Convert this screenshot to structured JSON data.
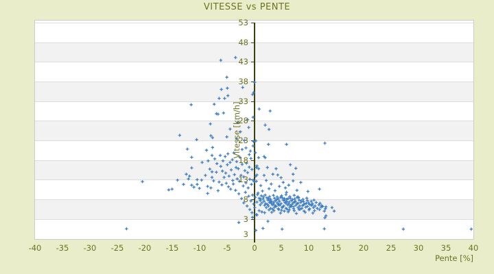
{
  "chart_data": {
    "type": "scatter",
    "title": "VITESSE vs PENTE",
    "xlabel": "Pente [%]",
    "ylabel": "Vitesse [km/h]",
    "xlim": [
      -40,
      40
    ],
    "ylim": [
      -2,
      53.5
    ],
    "x_ticks": [
      -40,
      -35,
      -30,
      -25,
      -20,
      -15,
      -10,
      -5,
      0,
      5,
      10,
      15,
      20,
      25,
      30,
      35,
      40
    ],
    "y_ticks": [
      53,
      48,
      43,
      38,
      33,
      28,
      23,
      18,
      13,
      8,
      3
    ],
    "y_axis_bottom_label": "3",
    "grid": "horizontal-stripes-every-5",
    "legend": "none",
    "marker": "plus",
    "colors": {
      "background": "#e9edca",
      "plot_background": "#ffffff",
      "stripe": "#f2f2f2",
      "gridline": "#dddddd",
      "plot_border": "#cccccc",
      "text": "#6c7423",
      "axis_line": "#3a400c",
      "point": "#3d7ec6"
    },
    "points": [
      [
        -6.1,
        43.4
      ],
      [
        -3.4,
        44.1
      ],
      [
        -5,
        39.1
      ],
      [
        0.1,
        37.8
      ],
      [
        -6,
        36
      ],
      [
        -4.9,
        36.3
      ],
      [
        -2.1,
        36.5
      ],
      [
        -0.1,
        35.2
      ],
      [
        -0.3,
        34.7
      ],
      [
        -4.8,
        34.4
      ],
      [
        -6.4,
        33.7
      ],
      [
        -5.4,
        33.7
      ],
      [
        -11.5,
        32.1
      ],
      [
        -7.3,
        32.2
      ],
      [
        0.9,
        31
      ],
      [
        2.9,
        30.5
      ],
      [
        -6.9,
        29.8
      ],
      [
        -5.6,
        30
      ],
      [
        -6.6,
        29.7
      ],
      [
        -0.2,
        28.9
      ],
      [
        -1.2,
        28.3
      ],
      [
        -3,
        27.6
      ],
      [
        -8,
        27.2
      ],
      [
        2,
        26.9
      ],
      [
        2.7,
        25.8
      ],
      [
        -1,
        26.3
      ],
      [
        -4.4,
        25.9
      ],
      [
        -2.5,
        25.2
      ],
      [
        -13.6,
        24.3
      ],
      [
        -7.9,
        24.2
      ],
      [
        -7.6,
        23.7
      ],
      [
        -10.5,
        23.2
      ],
      [
        -5,
        23.9
      ],
      [
        -3.2,
        23.4
      ],
      [
        0.3,
        22.9
      ],
      [
        -0.1,
        22.7
      ],
      [
        2.6,
        22
      ],
      [
        5.9,
        22
      ],
      [
        12.9,
        22.3
      ],
      [
        -1.8,
        23
      ],
      [
        -0.7,
        20.3
      ],
      [
        -1.5,
        21.1
      ],
      [
        -2.2,
        20.7
      ],
      [
        0.2,
        19.9
      ],
      [
        -0.9,
        19.4
      ],
      [
        -0.2,
        21.6
      ],
      [
        -12.2,
        20.8
      ],
      [
        -8.7,
        20.5
      ],
      [
        -7.6,
        21.2
      ],
      [
        -11.4,
        18.7
      ],
      [
        -7.7,
        19.2
      ],
      [
        -9.5,
        17.4
      ],
      [
        -8.4,
        17.8
      ],
      [
        -11.4,
        16
      ],
      [
        -8.1,
        15.7
      ],
      [
        -7.7,
        15
      ],
      [
        -12.4,
        14.4
      ],
      [
        -11.8,
        13.9
      ],
      [
        -8.9,
        14.1
      ],
      [
        -7.7,
        13.6
      ],
      [
        -20.4,
        12.5
      ],
      [
        -14,
        12.9
      ],
      [
        -12,
        13.2
      ],
      [
        -10.4,
        13
      ],
      [
        -9.6,
        12.9
      ],
      [
        -12.9,
        11.8
      ],
      [
        -11.4,
        11.6
      ],
      [
        -10.4,
        11.8
      ],
      [
        -15,
        10.6
      ],
      [
        -15.6,
        10.4
      ],
      [
        -11,
        11.1
      ],
      [
        -10,
        10.8
      ],
      [
        -8.5,
        11.3
      ],
      [
        -8.5,
        9.5
      ],
      [
        -7.2,
        18.3
      ],
      [
        -6.8,
        17.1
      ],
      [
        -6.1,
        16.4
      ],
      [
        -5.8,
        15.2
      ],
      [
        -5.2,
        14.7
      ],
      [
        -4.9,
        16.8
      ],
      [
        -4.6,
        13.9
      ],
      [
        -4.2,
        15.5
      ],
      [
        -3.9,
        12.8
      ],
      [
        -3.6,
        14.3
      ],
      [
        -3.3,
        16.1
      ],
      [
        -3.1,
        13.2
      ],
      [
        -6.4,
        12.4
      ],
      [
        -5.9,
        11.7
      ],
      [
        -5.5,
        13.6
      ],
      [
        -5.1,
        12.1
      ],
      [
        -4.7,
        11.2
      ],
      [
        -4.3,
        10.6
      ],
      [
        -3.8,
        11.9
      ],
      [
        -3.4,
        10.3
      ],
      [
        -6.9,
        14.9
      ],
      [
        -6.2,
        19.2
      ],
      [
        -5.7,
        17.8
      ],
      [
        -5.3,
        18.9
      ],
      [
        -4.8,
        19.6
      ],
      [
        -4.4,
        17.4
      ],
      [
        -4,
        18.1
      ],
      [
        -3.7,
        19.8
      ],
      [
        -3.2,
        17.6
      ],
      [
        -2.9,
        15.8
      ],
      [
        -2.7,
        12.6
      ],
      [
        -2.6,
        18.7
      ],
      [
        -2.4,
        14.1
      ],
      [
        -2.2,
        16.9
      ],
      [
        -2,
        11.4
      ],
      [
        -1.9,
        13.7
      ],
      [
        -1.7,
        15.3
      ],
      [
        -1.5,
        12.2
      ],
      [
        -1.4,
        17.2
      ],
      [
        -1.2,
        14.8
      ],
      [
        -1.1,
        10.9
      ],
      [
        -0.9,
        16.2
      ],
      [
        -0.8,
        13.1
      ],
      [
        -0.6,
        18.4
      ],
      [
        -0.5,
        11.8
      ],
      [
        -0.4,
        15.6
      ],
      [
        -0.2,
        12.9
      ],
      [
        -6.6,
        10.2
      ],
      [
        -7.4,
        12.7
      ],
      [
        -7.9,
        10.9
      ],
      [
        -2.8,
        9.4
      ],
      [
        -2.3,
        8.2
      ],
      [
        -1.9,
        7.1
      ],
      [
        -1.6,
        9.8
      ],
      [
        -1.3,
        6.3
      ],
      [
        -1,
        8.8
      ],
      [
        -0.8,
        5.4
      ],
      [
        -0.6,
        7.6
      ],
      [
        -0.4,
        4.6
      ],
      [
        -0.3,
        9.1
      ],
      [
        -0.1,
        6.8
      ],
      [
        0.1,
        5.9
      ],
      [
        0.2,
        8.5
      ],
      [
        0.4,
        4.1
      ],
      [
        0.5,
        7.3
      ],
      [
        0.7,
        9.6
      ],
      [
        0.9,
        5.1
      ],
      [
        1.1,
        6.6
      ],
      [
        1.2,
        8.1
      ],
      [
        1.4,
        4.8
      ],
      [
        0.4,
        16.1
      ],
      [
        0.5,
        16.5
      ],
      [
        0.8,
        15.8
      ],
      [
        2.4,
        16.1
      ],
      [
        4,
        15.8
      ],
      [
        6.6,
        16.8
      ],
      [
        7.6,
        15.9
      ],
      [
        3.4,
        14.4
      ],
      [
        4.3,
        14.2
      ],
      [
        0.5,
        14.2
      ],
      [
        0.3,
        13.9
      ],
      [
        1.8,
        14.1
      ],
      [
        7.1,
        14.4
      ],
      [
        7.1,
        12.7
      ],
      [
        5.3,
        12.3
      ],
      [
        8.5,
        12.3
      ],
      [
        0.4,
        12.6
      ],
      [
        0,
        12.5
      ],
      [
        0.8,
        18.6
      ],
      [
        1.8,
        18.9
      ],
      [
        2,
        18.6
      ],
      [
        1.2,
        11.5
      ],
      [
        2.2,
        12.8
      ],
      [
        3.1,
        11.9
      ],
      [
        2.7,
        10.7
      ],
      [
        4.6,
        11.3
      ],
      [
        3.8,
        10.2
      ],
      [
        5.7,
        10.9
      ],
      [
        1.5,
        10.1
      ],
      [
        6.3,
        11.6
      ],
      [
        4.9,
        13.5
      ],
      [
        5.9,
        9.8
      ],
      [
        7.8,
        10.3
      ],
      [
        9.8,
        10
      ],
      [
        11.9,
        10.6
      ],
      [
        0.6,
        9.2
      ],
      [
        1.3,
        8.9
      ],
      [
        2,
        9.1
      ],
      [
        2.8,
        8.7
      ],
      [
        3.5,
        9
      ],
      [
        4.2,
        8.6
      ],
      [
        5,
        8.9
      ],
      [
        5.8,
        9.2
      ],
      [
        6.5,
        8.7
      ],
      [
        7.3,
        9
      ],
      [
        8,
        8.6
      ],
      [
        1.7,
        8.6
      ],
      [
        0.9,
        8.3
      ],
      [
        1.6,
        8.1
      ],
      [
        2.3,
        8.4
      ],
      [
        3,
        8
      ],
      [
        3.7,
        8.3
      ],
      [
        4.4,
        8.1
      ],
      [
        5.1,
        8.4
      ],
      [
        5.9,
        8
      ],
      [
        6.6,
        8.3
      ],
      [
        7.4,
        8.1
      ],
      [
        8.1,
        8.4
      ],
      [
        8.9,
        8
      ],
      [
        9.6,
        8.3
      ],
      [
        2.6,
        8.2
      ],
      [
        4.8,
        8.5
      ],
      [
        6.2,
        8.2
      ],
      [
        7.8,
        8.5
      ],
      [
        5.5,
        8.2
      ],
      [
        1.1,
        7.7
      ],
      [
        1.8,
        7.5
      ],
      [
        2.5,
        7.8
      ],
      [
        3.2,
        7.4
      ],
      [
        3.9,
        7.7
      ],
      [
        4.6,
        7.5
      ],
      [
        5.3,
        7.8
      ],
      [
        6,
        7.4
      ],
      [
        6.8,
        7.7
      ],
      [
        7.5,
        7.5
      ],
      [
        8.2,
        7.8
      ],
      [
        9,
        7.4
      ],
      [
        9.7,
        7.7
      ],
      [
        10.4,
        7.5
      ],
      [
        2.9,
        7.6
      ],
      [
        4.1,
        7.9
      ],
      [
        5.6,
        7.6
      ],
      [
        7,
        7.9
      ],
      [
        8.6,
        7.6
      ],
      [
        3.6,
        7.3
      ],
      [
        6.4,
        7.3
      ],
      [
        10.9,
        7.8
      ],
      [
        1.4,
        7.1
      ],
      [
        2.1,
        6.9
      ],
      [
        2.8,
        7.2
      ],
      [
        3.5,
        6.8
      ],
      [
        4.2,
        7.1
      ],
      [
        4.9,
        6.9
      ],
      [
        5.6,
        7.2
      ],
      [
        6.3,
        6.8
      ],
      [
        7.1,
        7.1
      ],
      [
        7.8,
        6.9
      ],
      [
        8.5,
        7.2
      ],
      [
        9.2,
        6.8
      ],
      [
        9.9,
        7.1
      ],
      [
        10.6,
        6.9
      ],
      [
        11.3,
        7.2
      ],
      [
        3.1,
        7
      ],
      [
        5.8,
        7
      ],
      [
        8,
        7
      ],
      [
        4.5,
        6.7
      ],
      [
        6.9,
        6.7
      ],
      [
        9.5,
        7
      ],
      [
        2.4,
        6.7
      ],
      [
        12,
        7
      ],
      [
        10.1,
        6.7
      ],
      [
        7.4,
        7.3
      ],
      [
        1.9,
        6.5
      ],
      [
        2.6,
        6.3
      ],
      [
        3.3,
        6.6
      ],
      [
        4,
        6.2
      ],
      [
        4.7,
        6.5
      ],
      [
        5.4,
        6.3
      ],
      [
        6.1,
        6.6
      ],
      [
        6.8,
        6.2
      ],
      [
        7.6,
        6.5
      ],
      [
        8.3,
        6.3
      ],
      [
        9,
        6.6
      ],
      [
        9.7,
        6.2
      ],
      [
        10.4,
        6.5
      ],
      [
        11.1,
        6.3
      ],
      [
        11.8,
        6.6
      ],
      [
        12.5,
        6.2
      ],
      [
        3.8,
        6.4
      ],
      [
        6.6,
        6.4
      ],
      [
        8.8,
        6.4
      ],
      [
        5.2,
        6.1
      ],
      [
        7.2,
        6.1
      ],
      [
        10.6,
        6.6
      ],
      [
        12.3,
        6.4
      ],
      [
        13.1,
        6.1
      ],
      [
        4.4,
        6.6
      ],
      [
        2.2,
        5.9
      ],
      [
        3,
        5.7
      ],
      [
        3.7,
        6
      ],
      [
        4.4,
        5.6
      ],
      [
        5.1,
        5.9
      ],
      [
        5.8,
        5.7
      ],
      [
        6.5,
        6
      ],
      [
        7.2,
        5.6
      ],
      [
        8,
        5.9
      ],
      [
        8.7,
        5.7
      ],
      [
        9.4,
        6
      ],
      [
        10.1,
        5.6
      ],
      [
        10.8,
        5.9
      ],
      [
        11.5,
        5.7
      ],
      [
        12.2,
        6
      ],
      [
        13,
        5.6
      ],
      [
        14.2,
        5.9
      ],
      [
        6,
        5.5
      ],
      [
        8.4,
        5.5
      ],
      [
        3.4,
        5.5
      ],
      [
        2.7,
        5.3
      ],
      [
        3.6,
        5.1
      ],
      [
        4.5,
        5.4
      ],
      [
        5.5,
        5
      ],
      [
        6.4,
        5.3
      ],
      [
        7.3,
        5.1
      ],
      [
        8.2,
        5.4
      ],
      [
        9.1,
        5
      ],
      [
        10,
        5.3
      ],
      [
        11,
        5.1
      ],
      [
        11.9,
        5.4
      ],
      [
        12.8,
        5
      ],
      [
        14.6,
        5
      ],
      [
        5,
        5.2
      ],
      [
        3.2,
        4.7
      ],
      [
        4.8,
        4.5
      ],
      [
        6.2,
        4.8
      ],
      [
        7.7,
        4.4
      ],
      [
        9.3,
        4.7
      ],
      [
        10.7,
        4.5
      ],
      [
        13.1,
        3.8
      ],
      [
        1.9,
        4.6
      ],
      [
        -23.3,
        0.5
      ],
      [
        5.1,
        0.4
      ],
      [
        12.8,
        0.5
      ],
      [
        27.2,
        0.4
      ],
      [
        39.6,
        0.4
      ],
      [
        0.3,
        0.1
      ],
      [
        1.6,
        0.6
      ],
      [
        2.5,
        2.4
      ],
      [
        -2.8,
        2.1
      ],
      [
        12.9,
        3.3
      ],
      [
        -0.3,
        3.4
      ],
      [
        0.5,
        4
      ]
    ]
  }
}
